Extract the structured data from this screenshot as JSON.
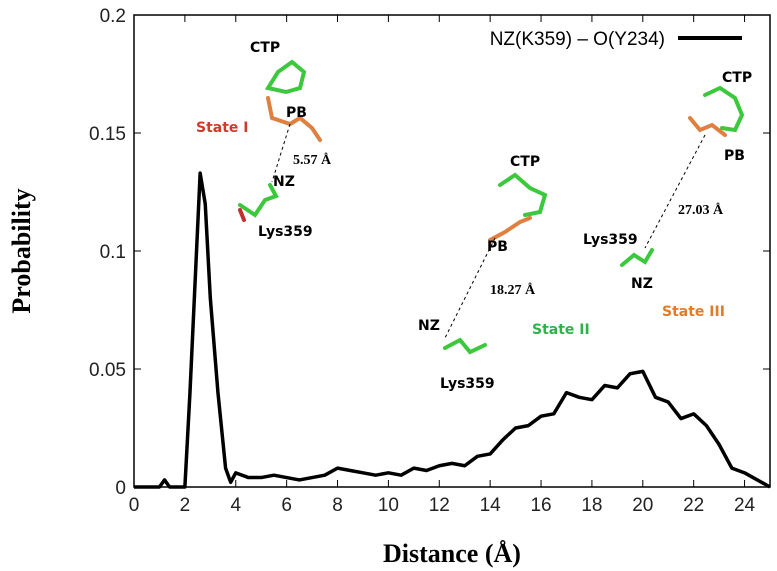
{
  "chart_data": {
    "type": "line",
    "xlabel": "Distance (Å)",
    "ylabel": "Probability",
    "xlim": [
      0,
      25
    ],
    "ylim": [
      0,
      0.2
    ],
    "xticks": [
      0,
      2,
      4,
      6,
      8,
      10,
      12,
      14,
      16,
      18,
      20,
      22,
      24
    ],
    "yticks": [
      0,
      0.05,
      0.1,
      0.15,
      0.2
    ],
    "legend": "upper right",
    "x": [
      0,
      0.5,
      1.0,
      1.2,
      1.4,
      2.0,
      2.2,
      2.6,
      2.8,
      3.0,
      3.3,
      3.6,
      3.8,
      4.0,
      4.5,
      5,
      5.5,
      6,
      6.5,
      7,
      7.5,
      8,
      8.5,
      9,
      9.5,
      10,
      10.5,
      11,
      11.5,
      12,
      12.5,
      13,
      13.5,
      14,
      14.5,
      15,
      15.5,
      16,
      16.5,
      17,
      17.5,
      18,
      18.5,
      19,
      19.5,
      20,
      20.5,
      21,
      21.5,
      22,
      22.5,
      23,
      23.5,
      24,
      24.5,
      25
    ],
    "series": [
      {
        "name": "NZ(K359) – O(Y234)",
        "color": "#000000",
        "values": [
          0,
          0,
          0,
          0.003,
          0,
          0,
          0.04,
          0.133,
          0.12,
          0.08,
          0.04,
          0.008,
          0.002,
          0.006,
          0.004,
          0.004,
          0.005,
          0.004,
          0.003,
          0.004,
          0.005,
          0.008,
          0.007,
          0.006,
          0.005,
          0.006,
          0.005,
          0.008,
          0.007,
          0.009,
          0.01,
          0.009,
          0.013,
          0.014,
          0.02,
          0.025,
          0.026,
          0.03,
          0.031,
          0.04,
          0.038,
          0.037,
          0.043,
          0.042,
          0.048,
          0.049,
          0.038,
          0.036,
          0.029,
          0.031,
          0.026,
          0.018,
          0.008,
          0.006,
          0.003,
          0
        ]
      }
    ],
    "annotations": [
      {
        "text": "CTP",
        "color": "#000000"
      },
      {
        "text": "PB",
        "color": "#000000"
      },
      {
        "text": "State I",
        "color": "#d03a2a"
      },
      {
        "text": "5.57 Å",
        "color": "#000000"
      },
      {
        "text": "NZ",
        "color": "#000000"
      },
      {
        "text": "Lys359",
        "color": "#000000"
      },
      {
        "text": "CTP",
        "color": "#000000"
      },
      {
        "text": "PB",
        "color": "#000000"
      },
      {
        "text": "18.27 Å",
        "color": "#000000"
      },
      {
        "text": "NZ",
        "color": "#000000"
      },
      {
        "text": "State II",
        "color": "#2db34a"
      },
      {
        "text": "Lys359",
        "color": "#000000"
      },
      {
        "text": "CTP",
        "color": "#000000"
      },
      {
        "text": "PB",
        "color": "#000000"
      },
      {
        "text": "27.03 Å",
        "color": "#000000"
      },
      {
        "text": "Lys359",
        "color": "#000000"
      },
      {
        "text": "NZ",
        "color": "#000000"
      },
      {
        "text": "State III",
        "color": "#e07b28"
      }
    ]
  }
}
